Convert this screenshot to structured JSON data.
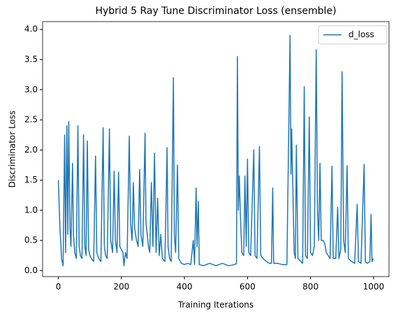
{
  "chart_data": {
    "type": "line",
    "title": "Hybrid 5 Ray Tune Discriminator Loss (ensemble)",
    "x_label": "Training Iterations",
    "y_label": "Discriminator Loss",
    "x": [
      0,
      5,
      8,
      10,
      15,
      20,
      23,
      27,
      30,
      33,
      37,
      40,
      45,
      48,
      52,
      57,
      62,
      66,
      70,
      75,
      80,
      84,
      88,
      92,
      96,
      100,
      105,
      112,
      118,
      122,
      128,
      135,
      142,
      146,
      150,
      155,
      162,
      166,
      172,
      177,
      181,
      186,
      191,
      195,
      200,
      205,
      208,
      213,
      218,
      225,
      229,
      234,
      238,
      242,
      248,
      253,
      258,
      262,
      268,
      275,
      278,
      282,
      286,
      290,
      295,
      300,
      305,
      310,
      315,
      320,
      325,
      330,
      338,
      345,
      348,
      353,
      358,
      365,
      368,
      372,
      378,
      382,
      390,
      400,
      410,
      420,
      428,
      432,
      437,
      440,
      444,
      447,
      460,
      480,
      500,
      520,
      540,
      560,
      565,
      568,
      571,
      574,
      577,
      582,
      588,
      592,
      596,
      600,
      604,
      610,
      620,
      624,
      630,
      638,
      642,
      650,
      660,
      670,
      676,
      680,
      683,
      695,
      710,
      725,
      735,
      738,
      740,
      743,
      748,
      752,
      755,
      760,
      770,
      775,
      780,
      784,
      790,
      796,
      800,
      806,
      812,
      818,
      822,
      826,
      830,
      834,
      840,
      845,
      850,
      856,
      862,
      868,
      872,
      880,
      886,
      890,
      896,
      900,
      905,
      910,
      916,
      920,
      930,
      940,
      948,
      952,
      960,
      970,
      974,
      980,
      988,
      992,
      995,
      999
    ],
    "series": [
      {
        "name": "d_loss",
        "color": "#1f77b4",
        "values": [
          1.5,
          0.7,
          0.45,
          0.2,
          0.08,
          2.25,
          0.3,
          2.4,
          0.6,
          2.47,
          0.7,
          0.4,
          1.78,
          0.6,
          0.3,
          0.2,
          2.4,
          0.4,
          0.25,
          0.2,
          2.25,
          0.4,
          0.25,
          2.15,
          0.35,
          0.25,
          0.2,
          0.15,
          1.9,
          0.3,
          0.2,
          0.15,
          2.37,
          0.4,
          0.25,
          0.2,
          2.35,
          0.5,
          0.3,
          1.65,
          0.5,
          0.3,
          1.63,
          0.4,
          0.35,
          0.3,
          0.08,
          0.3,
          0.2,
          2.23,
          0.8,
          0.5,
          1.46,
          0.7,
          0.5,
          0.4,
          1.68,
          0.6,
          0.4,
          2.28,
          0.8,
          0.6,
          0.4,
          0.3,
          1.46,
          0.4,
          1.95,
          0.3,
          1.2,
          0.25,
          0.6,
          0.2,
          0.15,
          2.04,
          0.4,
          0.2,
          0.15,
          3.2,
          0.6,
          0.3,
          1.75,
          0.2,
          0.12,
          0.1,
          0.12,
          0.1,
          0.5,
          0.1,
          1.37,
          0.4,
          1.15,
          0.1,
          0.08,
          0.12,
          0.08,
          0.12,
          0.08,
          0.1,
          0.12,
          3.55,
          1.0,
          1.57,
          1.0,
          0.3,
          0.25,
          1.57,
          0.4,
          1.85,
          0.3,
          0.25,
          2.0,
          0.25,
          0.2,
          2.06,
          0.25,
          0.2,
          0.15,
          0.12,
          0.12,
          1.37,
          0.12,
          0.12,
          0.1,
          0.1,
          3.9,
          1.6,
          2.35,
          1.6,
          0.3,
          0.2,
          2.08,
          0.2,
          0.15,
          0.12,
          3.05,
          0.25,
          0.2,
          2.55,
          0.3,
          0.25,
          0.4,
          3.66,
          1.0,
          0.5,
          1.78,
          0.5,
          0.5,
          0.45,
          0.3,
          0.25,
          0.2,
          1.73,
          0.2,
          0.2,
          1.05,
          0.2,
          0.35,
          3.3,
          0.5,
          0.3,
          1.74,
          0.2,
          0.15,
          0.12,
          1.1,
          0.15,
          0.12,
          1.76,
          0.15,
          0.12,
          0.15,
          0.93,
          0.15,
          0.2
        ]
      }
    ],
    "xlim": [
      -49.95,
      1048.95
    ],
    "ylim": [
      -0.1,
      4.13
    ],
    "xticks": [
      0,
      200,
      400,
      600,
      800,
      1000
    ],
    "yticks": [
      {
        "value": 0,
        "label": "0.0"
      },
      {
        "value": 0.5,
        "label": "0.5"
      },
      {
        "value": 1,
        "label": "1.0"
      },
      {
        "value": 1.5,
        "label": "1.5"
      },
      {
        "value": 2,
        "label": "2.0"
      },
      {
        "value": 2.5,
        "label": "2.5"
      },
      {
        "value": 3,
        "label": "3.0"
      },
      {
        "value": 3.5,
        "label": "3.5"
      },
      {
        "value": 4,
        "label": "4.0"
      }
    ],
    "grid": false,
    "legend": "upper right"
  }
}
